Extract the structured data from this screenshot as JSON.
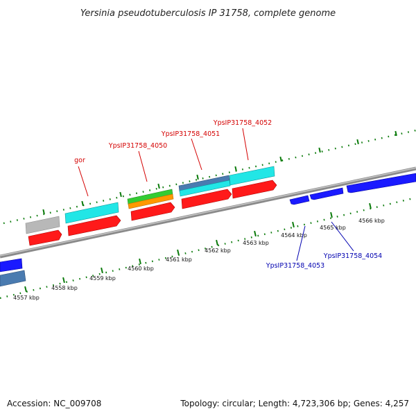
{
  "title": "Yersinia pseudotuberculosis IP 31758, complete genome",
  "footer": {
    "accession": "Accession: NC_009708",
    "summary": "Topology: circular; Length: 4,723,306 bp; Genes: 4,257"
  },
  "colors": {
    "red_gene": "#ff1a1a",
    "cyan_feature": "#22e6e6",
    "gray_feature": "#b8b8b8",
    "green_feature": "#33cc33",
    "orange_feature": "#ff9900",
    "steel_feature": "#4a7bb0",
    "blue_gene": "#1a1aff",
    "tick_green": "#0a7a0a",
    "label_red": "#d40000",
    "label_blue": "#0000b0"
  },
  "ticks": [
    "4557 kbp",
    "4558 kbp",
    "4559 kbp",
    "4560 kbp",
    "4561 kbp",
    "4562 kbp",
    "4563 kbp",
    "4564 kbp",
    "4565 kbp",
    "4566 kbp"
  ],
  "gene_labels": {
    "gor": "gor",
    "g4050": "YpsIP31758_4050",
    "g4051": "YpsIP31758_4051",
    "g4052": "YpsIP31758_4052",
    "g4053": "YpsIP31758_4053",
    "g4054": "YpsIP31758_4054"
  }
}
